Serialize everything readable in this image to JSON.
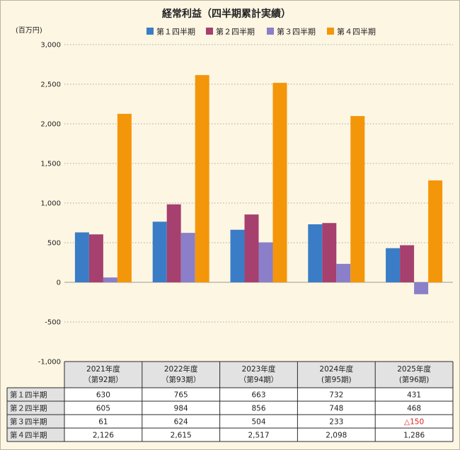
{
  "chart_data": {
    "type": "bar",
    "title": "経常利益（四半期累計実績）",
    "unit_label": "(百万円)",
    "ylim": [
      -1000,
      3000
    ],
    "yticks": [
      3000,
      2500,
      2000,
      1500,
      1000,
      500,
      0,
      -500,
      -1000
    ],
    "ytick_labels": [
      "3,000",
      "2,500",
      "2,000",
      "1,500",
      "1,000",
      "500",
      "0",
      "-500",
      "-1,000"
    ],
    "grid": true,
    "legend_position": "top",
    "categories": [
      "2021年度",
      "2022年度",
      "2023年度",
      "2024年度",
      "2025年度"
    ],
    "category_sublabels": [
      "（第92期）",
      "（第93期）",
      "（第94期）",
      "(第95期)",
      "(第96期)"
    ],
    "series": [
      {
        "name": "第１四半期",
        "color": "#3a7dc6",
        "values": [
          630,
          765,
          663,
          732,
          431
        ],
        "labels": [
          "630",
          "765",
          "663",
          "732",
          "431"
        ]
      },
      {
        "name": "第２四半期",
        "color": "#a6406e",
        "values": [
          605,
          984,
          856,
          748,
          468
        ],
        "labels": [
          "605",
          "984",
          "856",
          "748",
          "468"
        ]
      },
      {
        "name": "第３四半期",
        "color": "#8a7fc8",
        "values": [
          61,
          624,
          504,
          233,
          -150
        ],
        "labels": [
          "61",
          "624",
          "504",
          "233",
          "△150"
        ]
      },
      {
        "name": "第４四半期",
        "color": "#f4960a",
        "values": [
          2126,
          2615,
          2517,
          2098,
          1286
        ],
        "labels": [
          "2,126",
          "2,615",
          "2,517",
          "2,098",
          "1,286"
        ]
      }
    ]
  }
}
